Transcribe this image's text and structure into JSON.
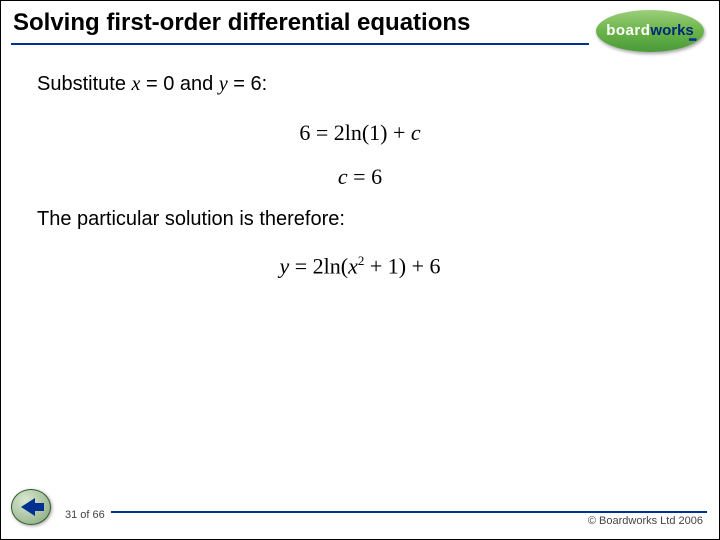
{
  "header": {
    "title": "Solving first-order differential equations",
    "logo_board": "board",
    "logo_works": "works",
    "logo_dots": "•••"
  },
  "content": {
    "substitute_prefix": "Substitute ",
    "x_var": "x",
    "eq_zero": " = 0 and ",
    "y_var": "y",
    "eq_six": " = 6:",
    "math1": "6 = 2ln(1) + ",
    "math1_c": "c",
    "math2_c": "c",
    "math2_rest": " = 6",
    "solution_text": "The particular solution is therefore:",
    "math3_y": "y",
    "math3_mid": " = 2ln(",
    "math3_x": "x",
    "math3_sup": "2",
    "math3_end": " + 1) + 6"
  },
  "footer": {
    "page": "31 of 66",
    "copyright": "© Boardworks Ltd 2006"
  },
  "colors": {
    "underline": "#003090",
    "logo_green_top": "#9ccf7a",
    "logo_green_bot": "#4a9a3a",
    "background": "#ffffff"
  }
}
